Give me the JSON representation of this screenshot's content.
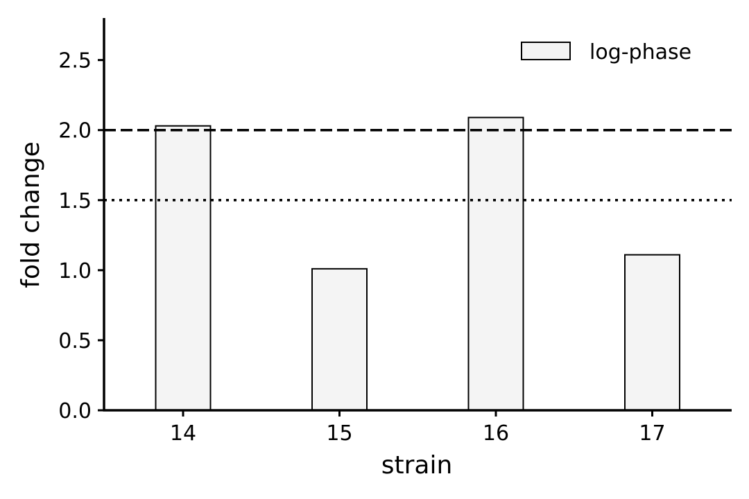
{
  "chart_data": {
    "type": "bar",
    "categories": [
      "14",
      "15",
      "16",
      "17"
    ],
    "series": [
      {
        "name": "log-phase",
        "values": [
          2.03,
          1.01,
          2.09,
          1.11
        ]
      }
    ],
    "xlabel": "strain",
    "ylabel": "fold change",
    "ylim": [
      0,
      2.8
    ],
    "yticks": [
      0.0,
      0.5,
      1.0,
      1.5,
      2.0,
      2.5
    ],
    "ytick_labels": [
      "0.0",
      "0.5",
      "1.0",
      "1.5",
      "2.0",
      "2.5"
    ],
    "reference_lines": [
      {
        "y": 2.0,
        "style": "dashed"
      },
      {
        "y": 1.5,
        "style": "dotted"
      }
    ],
    "legend_position": "top-right",
    "grid": false,
    "bar_fill": "#f4f4f4",
    "bar_edge": "#000000"
  }
}
